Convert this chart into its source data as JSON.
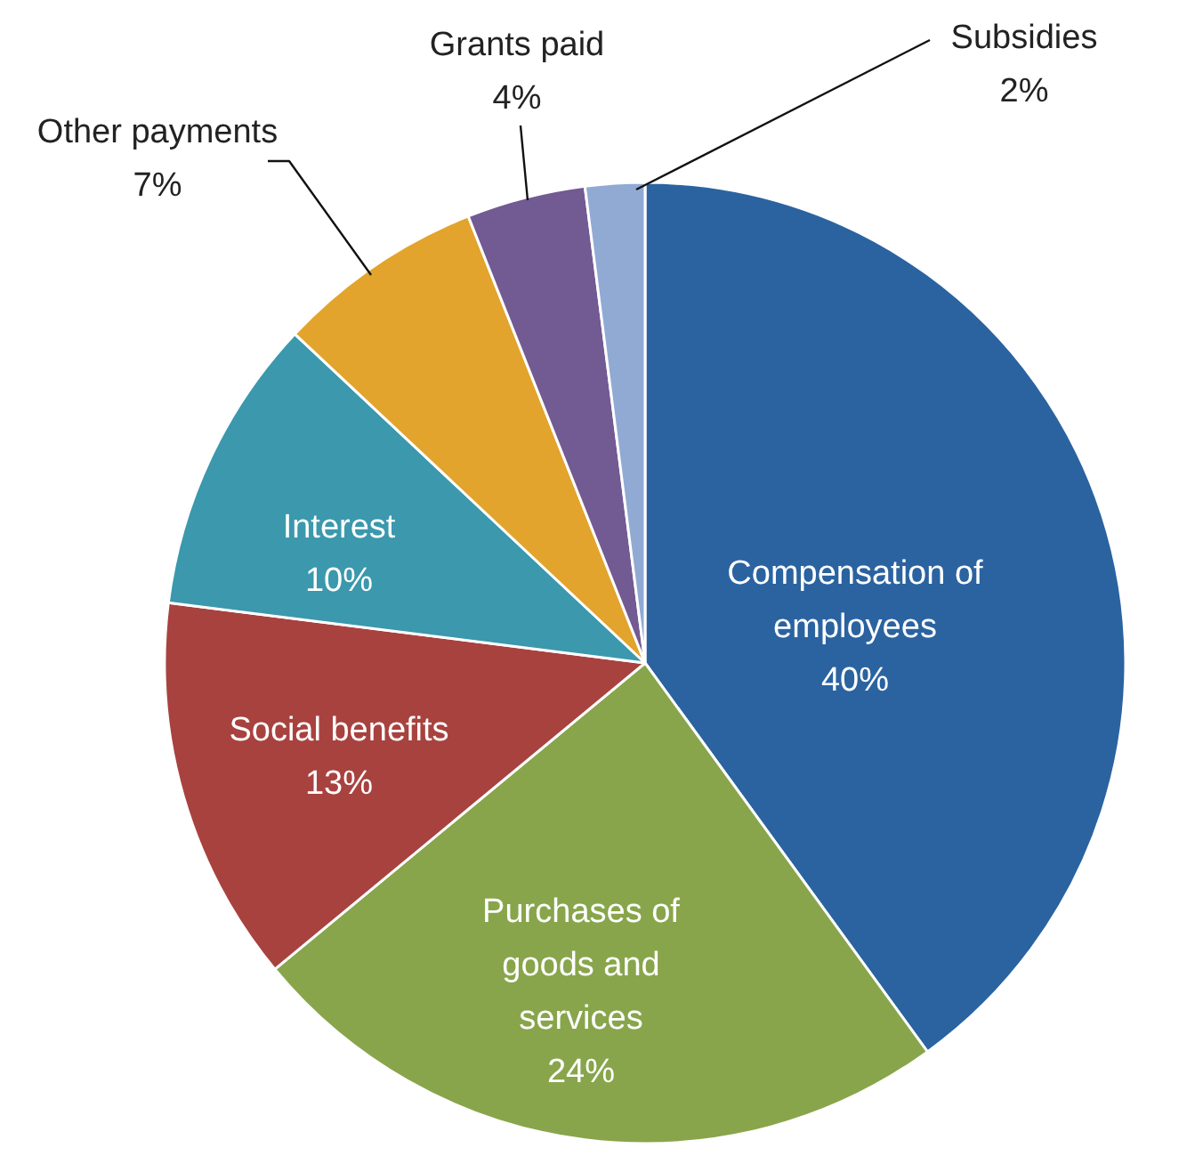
{
  "chart_data": {
    "type": "pie",
    "categories": [
      "Compensation of employees",
      "Purchases of goods and services",
      "Social benefits",
      "Interest",
      "Other payments",
      "Grants paid",
      "Subsidies"
    ],
    "values": [
      40,
      24,
      13,
      10,
      7,
      4,
      2
    ],
    "value_labels": [
      "40%",
      "24%",
      "13%",
      "10%",
      "7%",
      "4%",
      "2%"
    ],
    "colors": [
      "#2a63a0",
      "#88a54b",
      "#a8423f",
      "#3b98ad",
      "#e2a42c",
      "#725a92",
      "#91aad4"
    ]
  }
}
